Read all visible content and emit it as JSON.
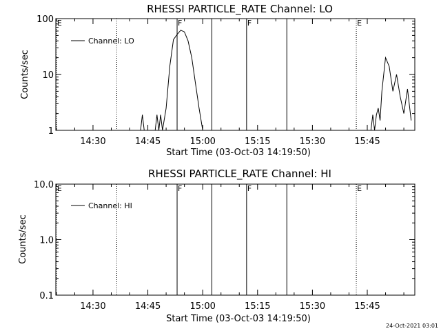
{
  "chart_data": [
    {
      "type": "line",
      "title": "RHESSI PARTICLE_RATE Channel: LO",
      "xlabel": "Start Time (03-Oct-03 14:19:50)",
      "ylabel": "Counts/sec",
      "yscale": "log",
      "ylim": [
        1,
        100
      ],
      "ytick_labels": [
        "1",
        "10",
        "100"
      ],
      "xlim_minutes": [
        "14:19:50",
        "15:58:00"
      ],
      "xtick_labels": [
        "14:30",
        "14:45",
        "15:00",
        "15:15",
        "15:30",
        "15:45"
      ],
      "legend": "top-left",
      "series": [
        {
          "name": "Channel: LO",
          "x": [
            "14:43",
            "14:43.5",
            "14:44",
            "14:47",
            "14:47.5",
            "14:48",
            "14:48.5",
            "14:49",
            "14:50",
            "14:51",
            "14:52",
            "14:53",
            "14:54",
            "14:55",
            "14:56",
            "14:57",
            "14:58",
            "14:59",
            "15:00",
            "15:46",
            "15:46.5",
            "15:47",
            "15:47.5",
            "15:48",
            "15:48.5",
            "15:49",
            "15:50",
            "15:51",
            "15:52",
            "15:53",
            "15:54",
            "15:55",
            "15:56",
            "15:57"
          ],
          "y": [
            1,
            1.9,
            1,
            1,
            1.9,
            1,
            1.9,
            1,
            2.5,
            14,
            42,
            52,
            62,
            58,
            40,
            20,
            7,
            2.5,
            1,
            1,
            1.9,
            1,
            1.9,
            2.5,
            1.5,
            5,
            20,
            14,
            5,
            10,
            4,
            2,
            5.5,
            1.5
          ]
        }
      ],
      "markers": [
        {
          "label": "E",
          "time": "14:20",
          "style": "dotted"
        },
        {
          "label": "",
          "time": "14:36.5",
          "style": "dotted"
        },
        {
          "label": "F",
          "time": "14:53",
          "style": "solid"
        },
        {
          "label": "",
          "time": "15:02.5",
          "style": "solid"
        },
        {
          "label": "F",
          "time": "15:12",
          "style": "solid"
        },
        {
          "label": "",
          "time": "15:23",
          "style": "solid"
        },
        {
          "label": "E",
          "time": "15:42",
          "style": "dotted"
        },
        {
          "label": "",
          "time": "15:58",
          "style": "dotted"
        }
      ]
    },
    {
      "type": "line",
      "title": "RHESSI PARTICLE_RATE Channel: HI",
      "xlabel": "Start Time (03-Oct-03 14:19:50)",
      "ylabel": "Counts/sec",
      "yscale": "log",
      "ylim": [
        0.1,
        10
      ],
      "ytick_labels": [
        "0.1",
        "1.0",
        "10.0"
      ],
      "xlim_minutes": [
        "14:19:50",
        "15:58:00"
      ],
      "xtick_labels": [
        "14:30",
        "14:45",
        "15:00",
        "15:15",
        "15:30",
        "15:45"
      ],
      "legend": "top-left",
      "series": [
        {
          "name": "Channel: HI",
          "x": [],
          "y": []
        }
      ],
      "markers": [
        {
          "label": "E",
          "time": "14:20",
          "style": "dotted"
        },
        {
          "label": "",
          "time": "14:36.5",
          "style": "dotted"
        },
        {
          "label": "F",
          "time": "14:53",
          "style": "solid"
        },
        {
          "label": "",
          "time": "15:02.5",
          "style": "solid"
        },
        {
          "label": "F",
          "time": "15:12",
          "style": "solid"
        },
        {
          "label": "",
          "time": "15:23",
          "style": "solid"
        },
        {
          "label": "E",
          "time": "15:42",
          "style": "dotted"
        },
        {
          "label": "",
          "time": "15:58",
          "style": "dotted"
        }
      ]
    }
  ],
  "footer": {
    "timestamp": "24-Oct-2021 03:01"
  }
}
